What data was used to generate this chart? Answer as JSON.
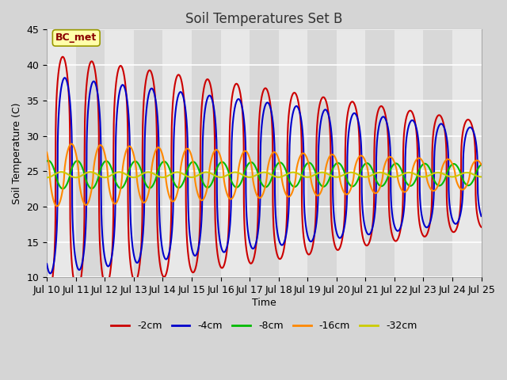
{
  "title": "Soil Temperatures Set B",
  "xlabel": "Time",
  "ylabel": "Soil Temperature (C)",
  "ylim": [
    10,
    45
  ],
  "xlim": [
    0,
    15
  ],
  "annotation": "BC_met",
  "legend_labels": [
    "-2cm",
    "-4cm",
    "-8cm",
    "-16cm",
    "-32cm"
  ],
  "legend_colors": [
    "#cc0000",
    "#0000cc",
    "#00bb00",
    "#ff8800",
    "#cccc00"
  ],
  "xtick_labels": [
    "Jul 10",
    "Jul 11",
    "Jul 12",
    "Jul 13",
    "Jul 14",
    "Jul 15",
    "Jul 16",
    "Jul 17",
    "Jul 18",
    "Jul 19",
    "Jul 20",
    "Jul 21",
    "Jul 22",
    "Jul 23",
    "Jul 24",
    "Jul 25"
  ],
  "mean_temp": 24.5,
  "amp_start": [
    17.0,
    14.0,
    2.0,
    4.5,
    0.4
  ],
  "amp_end": [
    7.5,
    6.5,
    1.5,
    2.0,
    0.3
  ],
  "phase_lags": [
    0.05,
    0.12,
    0.55,
    0.35,
    0.0
  ],
  "period": 1.0,
  "sharpness": [
    3.5,
    3.0,
    1.2,
    1.5,
    1.0
  ]
}
